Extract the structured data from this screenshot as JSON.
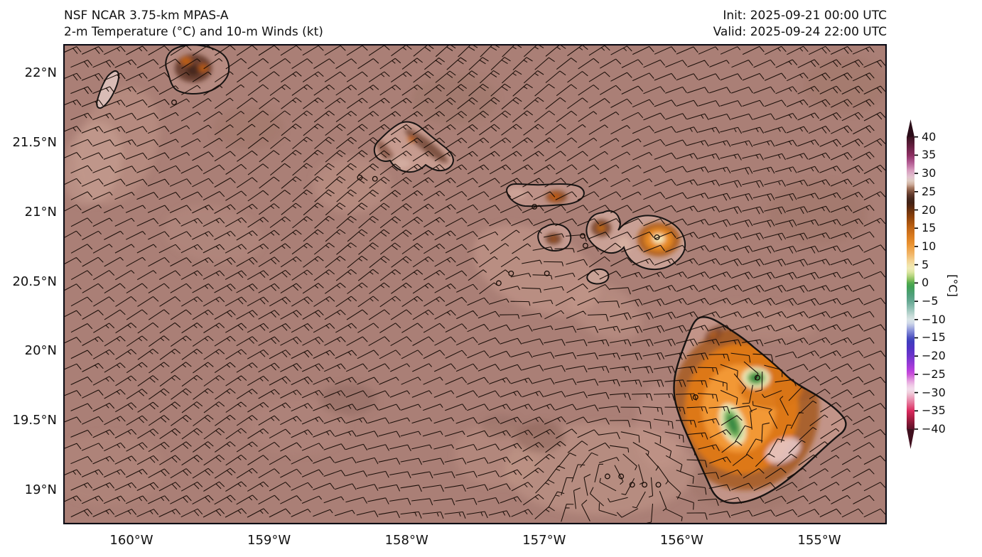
{
  "header": {
    "title_line1": "NSF NCAR 3.75-km MPAS-A",
    "title_line2": "2-m Temperature (°C) and 10-m Winds (kt)",
    "init_label": "Init: 2025-09-21 00:00 UTC",
    "valid_label": "Valid: 2025-09-24 22:00 UTC"
  },
  "axes": {
    "lat_ticks": [
      {
        "label": "22°N",
        "lat": 22
      },
      {
        "label": "21.5°N",
        "lat": 21.5
      },
      {
        "label": "21°N",
        "lat": 21
      },
      {
        "label": "20.5°N",
        "lat": 20.5
      },
      {
        "label": "20°N",
        "lat": 20
      },
      {
        "label": "19.5°N",
        "lat": 19.5
      },
      {
        "label": "19°N",
        "lat": 19
      }
    ],
    "lon_ticks": [
      {
        "label": "160°W",
        "lon": -160
      },
      {
        "label": "159°W",
        "lon": -159
      },
      {
        "label": "158°W",
        "lon": -158
      },
      {
        "label": "157°W",
        "lon": -157
      },
      {
        "label": "156°W",
        "lon": -156
      },
      {
        "label": "155°W",
        "lon": -155
      }
    ]
  },
  "colorbar": {
    "unit_label": "[°C]",
    "extend": "both",
    "ticks": [
      {
        "v": 40,
        "label": "40"
      },
      {
        "v": 35,
        "label": "35"
      },
      {
        "v": 30,
        "label": "30"
      },
      {
        "v": 25,
        "label": "25"
      },
      {
        "v": 20,
        "label": "20"
      },
      {
        "v": 15,
        "label": "15"
      },
      {
        "v": 10,
        "label": "10"
      },
      {
        "v": 5,
        "label": "5"
      },
      {
        "v": 0,
        "label": "0"
      },
      {
        "v": -5,
        "label": "−5"
      },
      {
        "v": -10,
        "label": "−10"
      },
      {
        "v": -15,
        "label": "−15"
      },
      {
        "v": -20,
        "label": "−20"
      },
      {
        "v": -25,
        "label": "−25"
      },
      {
        "v": -30,
        "label": "−30"
      },
      {
        "v": -35,
        "label": "−35"
      },
      {
        "v": -40,
        "label": "−40"
      }
    ],
    "colormap_stops": [
      [
        40,
        "#3a1220"
      ],
      [
        37.5,
        "#641f40"
      ],
      [
        35,
        "#8c2f62"
      ],
      [
        33,
        "#b25a92"
      ],
      [
        31,
        "#d597bb"
      ],
      [
        30,
        "#dcaec7"
      ],
      [
        29,
        "#e2c3ce"
      ],
      [
        28,
        "#dfccc1"
      ],
      [
        27,
        "#cfae9e"
      ],
      [
        26,
        "#a3765f"
      ],
      [
        25,
        "#7b4f3d"
      ],
      [
        24,
        "#5b3629"
      ],
      [
        23,
        "#46281d"
      ],
      [
        22,
        "#422215"
      ],
      [
        21,
        "#532711"
      ],
      [
        20,
        "#69300e"
      ],
      [
        18,
        "#8f430c"
      ],
      [
        16,
        "#b25a10"
      ],
      [
        15,
        "#c16616"
      ],
      [
        13,
        "#d87a1f"
      ],
      [
        11,
        "#e78e2e"
      ],
      [
        10,
        "#ec9c3e"
      ],
      [
        8,
        "#f1b466"
      ],
      [
        6,
        "#f3d494"
      ],
      [
        5,
        "#f2e2a8"
      ],
      [
        4,
        "#efeab5"
      ],
      [
        3,
        "#dce6a2"
      ],
      [
        2,
        "#b8d683"
      ],
      [
        1,
        "#8cc261"
      ],
      [
        0,
        "#53ab4f"
      ],
      [
        -1,
        "#41a154"
      ],
      [
        -3,
        "#4d9f78"
      ],
      [
        -5,
        "#65a892"
      ],
      [
        -7,
        "#93c2b6"
      ],
      [
        -9,
        "#c8dcd9"
      ],
      [
        -10,
        "#dae5e7"
      ],
      [
        -11,
        "#d0d9e9"
      ],
      [
        -13,
        "#8b93d9"
      ],
      [
        -15,
        "#4b4fc0"
      ],
      [
        -16,
        "#3f3dbd"
      ],
      [
        -18,
        "#5433c5"
      ],
      [
        -20,
        "#6f35cc"
      ],
      [
        -22,
        "#9339d5"
      ],
      [
        -24,
        "#b940dc"
      ],
      [
        -25,
        "#ca52d9"
      ],
      [
        -26,
        "#d980da"
      ],
      [
        -27,
        "#e7a8e0"
      ],
      [
        -28,
        "#efc9e6"
      ],
      [
        -29,
        "#f3dcec"
      ],
      [
        -30,
        "#f0cfdc"
      ],
      [
        -31,
        "#ecaec6"
      ],
      [
        -33,
        "#e56e94"
      ],
      [
        -35,
        "#da2a5e"
      ],
      [
        -37,
        "#aa1e44"
      ],
      [
        -39,
        "#731630"
      ],
      [
        -40,
        "#5c1228"
      ]
    ],
    "arrow_over_color": "#26091500",
    "arrow_top_color": "#2a0c18",
    "arrow_bottom_color": "#40101f"
  },
  "chart_data": {
    "type": "heatmap",
    "title": "NSF NCAR 3.75-km MPAS-A",
    "subtitle": "2-m Temperature (°C) and 10-m Winds (kt)",
    "init_time": "2025-09-21 00:00 UTC",
    "valid_time": "2025-09-24 22:00 UTC",
    "region": "Hawaiian Islands",
    "projection": "plate carrée (lon/lat)",
    "lon_range": [
      -160.49,
      -154.51
    ],
    "lat_range": [
      18.76,
      22.21
    ],
    "field": "2-m temperature, shaded, °C",
    "field_range_shown": [
      -40,
      40
    ],
    "overlay": "10-m wind barbs, kt",
    "ocean_temp_c_est": 25.5,
    "islands": [
      {
        "name": "Niihau",
        "lowland_temp_c_est": 27
      },
      {
        "name": "Kauai",
        "interior_temp_c_est": 20,
        "summit_spots_temp_c_est": 14
      },
      {
        "name": "Oahu",
        "lowland_temp_c_est": 27,
        "ridge_temp_c_est": 21
      },
      {
        "name": "Molokai",
        "east_highland_temp_c_est": 15
      },
      {
        "name": "Lanai",
        "summit_temp_c_est": 21
      },
      {
        "name": "Kahoolawe",
        "temp_c_est": 26
      },
      {
        "name": "Maui",
        "lowland_temp_c_est": 27,
        "haleakala_summit_temp_c_est": 9
      },
      {
        "name": "Hawaii (Big Island)",
        "coast_temp_c_est": 27,
        "slopes_temp_c_est": 13,
        "mauna_kea_summit_temp_c_est": 1,
        "mauna_loa_summit_temp_c_est": 2,
        "southeast_warm_patch_c_est": 29
      }
    ],
    "wind": {
      "regime": "NE-E trade winds over open ocean",
      "typical_speed_kt": "10-20",
      "lee_eddy_center_lonlat": [
        -156.5,
        19.1
      ],
      "calm_circles_lonlat": [
        [
          -159.69,
          21.79
        ],
        [
          -158.34,
          21.25
        ],
        [
          -158.23,
          21.24
        ],
        [
          -157.07,
          21.04
        ],
        [
          -156.72,
          20.83
        ],
        [
          -156.7,
          20.76
        ],
        [
          -157.24,
          20.56
        ],
        [
          -157.33,
          20.49
        ],
        [
          -156.98,
          20.56
        ],
        [
          -156.18,
          20.82
        ],
        [
          -155.45,
          19.81
        ],
        [
          -155.9,
          19.67
        ],
        [
          -156.54,
          19.1
        ],
        [
          -156.44,
          19.1
        ],
        [
          -156.36,
          19.04
        ],
        [
          -156.27,
          19.04
        ],
        [
          -156.17,
          19.04
        ]
      ]
    },
    "colors": {
      "ocean_base": "#aa7f76",
      "barb": "#1a0e08",
      "coastline": "#0a0a0a",
      "frame": "#0a0a14",
      "orange_slope": "#e67e1c",
      "green_summit": "#2f8340",
      "page_background": "#ffffff"
    }
  }
}
